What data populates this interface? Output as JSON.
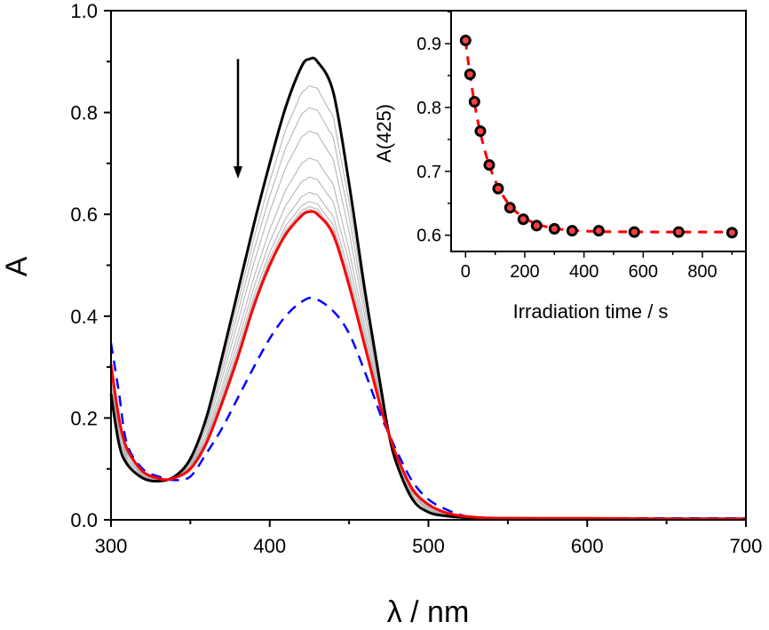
{
  "chart_data": [
    {
      "type": "line",
      "xlabel": "λ / nm",
      "ylabel": "A",
      "xlim": [
        300,
        700
      ],
      "ylim": [
        0,
        1.0
      ],
      "xticks": [
        "300",
        "400",
        "500",
        "600",
        "700"
      ],
      "yticks": [
        "0.0",
        "0.2",
        "0.4",
        "0.6",
        "0.8",
        "1.0"
      ],
      "grid": false,
      "series": [
        {
          "style": "solid",
          "color": "#000000",
          "x": [
            300,
            305,
            310,
            320,
            330,
            340,
            350,
            360,
            370,
            380,
            390,
            400,
            410,
            420,
            425,
            430,
            440,
            450,
            460,
            470,
            475,
            480,
            490,
            500,
            510,
            520,
            530,
            550,
            600,
            650,
            700
          ],
          "y": [
            0.247,
            0.15,
            0.11,
            0.082,
            0.076,
            0.085,
            0.12,
            0.2,
            0.32,
            0.45,
            0.58,
            0.7,
            0.81,
            0.89,
            0.905,
            0.9,
            0.84,
            0.66,
            0.45,
            0.26,
            0.17,
            0.11,
            0.04,
            0.015,
            0.008,
            0.005,
            0.003,
            0.003,
            0.002,
            0.002,
            0.002
          ]
        },
        {
          "style": "solid",
          "color": "#ff0000",
          "x": [
            300,
            305,
            310,
            320,
            330,
            335,
            340,
            350,
            360,
            370,
            380,
            390,
            400,
            410,
            420,
            425,
            430,
            440,
            450,
            460,
            470,
            475,
            480,
            490,
            500,
            510,
            520,
            530,
            550,
            600,
            650,
            700
          ],
          "y": [
            0.306,
            0.2,
            0.14,
            0.095,
            0.081,
            0.079,
            0.082,
            0.1,
            0.15,
            0.23,
            0.32,
            0.42,
            0.5,
            0.56,
            0.597,
            0.605,
            0.6,
            0.56,
            0.46,
            0.34,
            0.22,
            0.17,
            0.125,
            0.06,
            0.03,
            0.015,
            0.008,
            0.005,
            0.003,
            0.003,
            0.002,
            0.002
          ]
        },
        {
          "style": "dashed",
          "color": "#0000ff",
          "x": [
            300,
            305,
            310,
            320,
            330,
            340,
            350,
            360,
            370,
            380,
            390,
            400,
            410,
            420,
            428,
            440,
            450,
            460,
            470,
            475,
            480,
            490,
            500,
            510,
            520,
            530,
            550,
            600,
            650,
            700
          ],
          "y": [
            0.347,
            0.25,
            0.15,
            0.1,
            0.085,
            0.078,
            0.085,
            0.13,
            0.18,
            0.24,
            0.3,
            0.356,
            0.4,
            0.428,
            0.435,
            0.41,
            0.366,
            0.29,
            0.205,
            0.17,
            0.135,
            0.075,
            0.04,
            0.022,
            0.01,
            0.004,
            0.003,
            0.003,
            0.003,
            0.003
          ]
        }
      ],
      "intermediate_spectra": {
        "color": "#b0b0b0",
        "peak_A425": [
          0.852,
          0.809,
          0.763,
          0.71,
          0.673,
          0.643,
          0.625,
          0.615,
          0.61
        ]
      },
      "annotations": [
        {
          "type": "arrow",
          "direction": "down",
          "x": 380,
          "y_from": 0.905,
          "y_to": 0.67
        }
      ]
    },
    {
      "type": "scatter",
      "placement": "inset top-right",
      "xlabel": "Irradiation time / s",
      "ylabel": "A(425)",
      "xlim": [
        -40,
        945
      ],
      "ylim": [
        0.575,
        0.99
      ],
      "xticks": [
        "0",
        "200",
        "400",
        "600",
        "800"
      ],
      "yticks": [
        "0.6",
        "0.7",
        "0.8",
        "0.9"
      ],
      "points": {
        "marker_edge": "#000000",
        "marker_fill": "#ff4040",
        "x": [
          0,
          15,
          30,
          50,
          80,
          110,
          150,
          195,
          240,
          300,
          360,
          450,
          570,
          720,
          900
        ],
        "y": [
          0.905,
          0.852,
          0.809,
          0.763,
          0.71,
          0.673,
          0.643,
          0.625,
          0.615,
          0.61,
          0.607,
          0.607,
          0.605,
          0.605,
          0.604
        ]
      },
      "fit": {
        "type": "exponential",
        "style": "dashed",
        "color": "#ff0000",
        "A_inf": 0.605,
        "A0": 0.905,
        "tau": 76
      }
    }
  ]
}
